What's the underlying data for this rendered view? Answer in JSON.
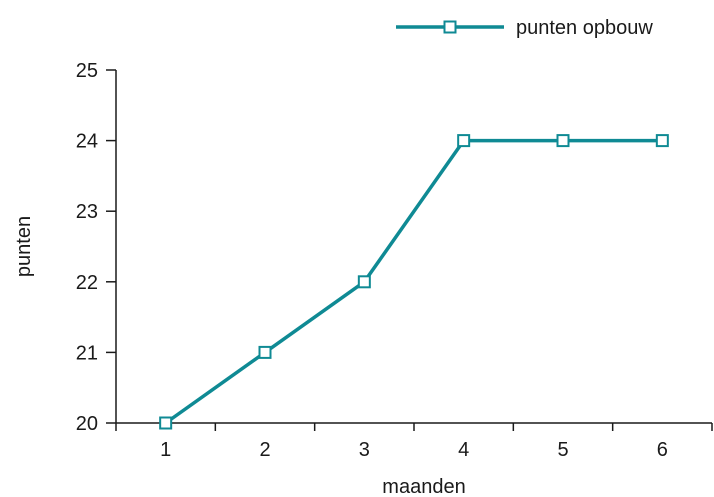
{
  "chart_data": {
    "type": "line",
    "title": "",
    "xlabel": "maanden",
    "ylabel": "punten",
    "x": [
      1,
      2,
      3,
      4,
      5,
      6
    ],
    "x_tick_labels": [
      "1",
      "2",
      "3",
      "4",
      "5",
      "6"
    ],
    "y_tick_labels": [
      "20",
      "21",
      "22",
      "23",
      "24",
      "25"
    ],
    "ylim": [
      20,
      25
    ],
    "xlim": [
      0.5,
      6.5
    ],
    "grid": false,
    "legend_position": "top-right",
    "series": [
      {
        "name": "punten opbouw",
        "values": [
          20,
          21,
          22,
          24,
          24,
          24
        ],
        "color": "#0f8a94",
        "marker": "open-square"
      }
    ]
  }
}
